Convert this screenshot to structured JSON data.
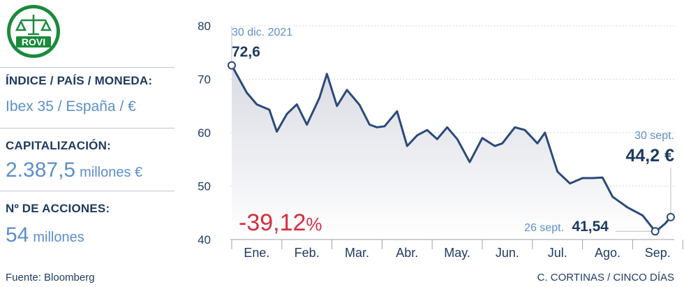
{
  "logo": {
    "text": "ROVI",
    "color": "#1a8a3c"
  },
  "panel": {
    "index_label": "ÍNDICE / PAÍS / MONEDA:",
    "index_value": "Ibex 35 / España / €",
    "cap_label": "CAPITALIZACIÓN:",
    "cap_value": "2.387,5",
    "cap_unit": "millones €",
    "shares_label": "Nº DE ACCIONES:",
    "shares_value": "54",
    "shares_unit": "millones"
  },
  "footer": {
    "source": "Fuente: Bloomberg",
    "credit": "C. CORTINAS / CINCO DÍAS"
  },
  "colors": {
    "line": "#2a4a7a",
    "fill_top": "#d9dbe3",
    "fill_bottom": "#ffffff",
    "accent": "#5b8fc9",
    "negative": "#d62e3e",
    "text": "#1d3a5f"
  },
  "chart_data": {
    "type": "area",
    "ylim": [
      40,
      80
    ],
    "yticks": [
      40,
      50,
      60,
      70,
      80
    ],
    "months": [
      "Ene.",
      "Feb.",
      "Mar.",
      "Abr.",
      "May.",
      "Jun.",
      "Jul.",
      "Ago.",
      "Sep."
    ],
    "x": [
      0,
      0.3,
      0.5,
      0.75,
      0.9,
      1.1,
      1.3,
      1.5,
      1.75,
      1.9,
      2.1,
      2.3,
      2.55,
      2.75,
      2.9,
      3.05,
      3.3,
      3.5,
      3.7,
      3.9,
      4.1,
      4.3,
      4.5,
      4.75,
      5.0,
      5.25,
      5.4,
      5.65,
      5.85,
      6.1,
      6.25,
      6.5,
      6.75,
      7.0,
      7.2,
      7.4,
      7.6,
      7.9,
      8.2,
      8.45,
      8.5,
      8.65,
      8.76
    ],
    "y": [
      72.6,
      67.5,
      65.3,
      64.3,
      60.2,
      63.5,
      65.3,
      61.5,
      66.5,
      71.0,
      65.0,
      68.0,
      65.2,
      61.5,
      61.0,
      61.2,
      64.0,
      57.5,
      59.5,
      60.5,
      58.8,
      61.0,
      58.8,
      54.5,
      59.0,
      57.5,
      58.0,
      61.0,
      60.5,
      58.0,
      60.0,
      52.7,
      50.5,
      51.5,
      51.5,
      51.6,
      48.0,
      46.0,
      44.5,
      41.54,
      41.8,
      43.0,
      44.2
    ],
    "annotations": {
      "start_date": "30 dic. 2021",
      "start_value": "72,6",
      "end_date": "30 sept.",
      "end_value": "44,2 €",
      "min_date": "26 sept.",
      "min_value": "41,54",
      "change": "-39,12",
      "change_unit": "%"
    }
  }
}
